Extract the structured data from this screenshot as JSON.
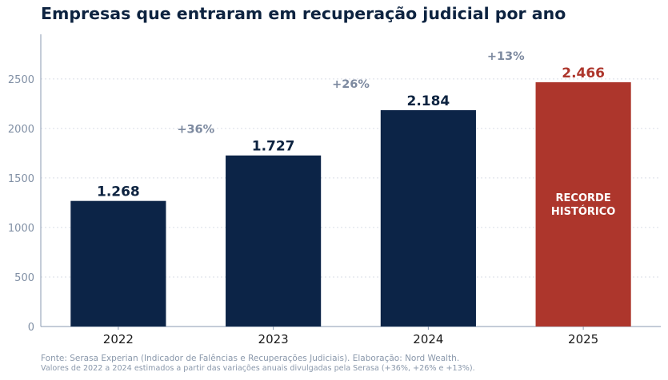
{
  "chart_data": {
    "type": "bar",
    "title": "Empresas que entraram em recuperação judicial por ano",
    "categories": [
      "2022",
      "2023",
      "2024",
      "2025"
    ],
    "values": [
      1268,
      1727,
      2184,
      2466
    ],
    "value_labels": [
      "1.268",
      "1.727",
      "2.184",
      "2.466"
    ],
    "growth_labels": [
      "+36%",
      "+26%",
      "+13%"
    ],
    "highlight_label": [
      "RECORDE",
      "HISTÓRICO"
    ],
    "yticks": [
      0,
      500,
      1000,
      1500,
      2000,
      2500
    ],
    "ylim": [
      0,
      2950
    ],
    "xlabel": "",
    "ylabel": "",
    "grid": "horizontal dotted",
    "colors": {
      "bar": "#0c2447",
      "highlight_bar": "#ad362c",
      "value_label": "#0d2340",
      "highlight_value_label": "#ad362c",
      "growth_label": "#7d8aa0",
      "axis": "#8a9ab0",
      "tick_label": "#8190a5"
    }
  },
  "footnotes": {
    "source": "Fonte: Serasa Experian (Indicador de Falências e Recuperações Judiciais). Elaboração: Nord Wealth.",
    "note": "Valores de 2022 a 2024 estimados a partir das variações anuais divulgadas pela Serasa (+36%, +26% e +13%)."
  }
}
